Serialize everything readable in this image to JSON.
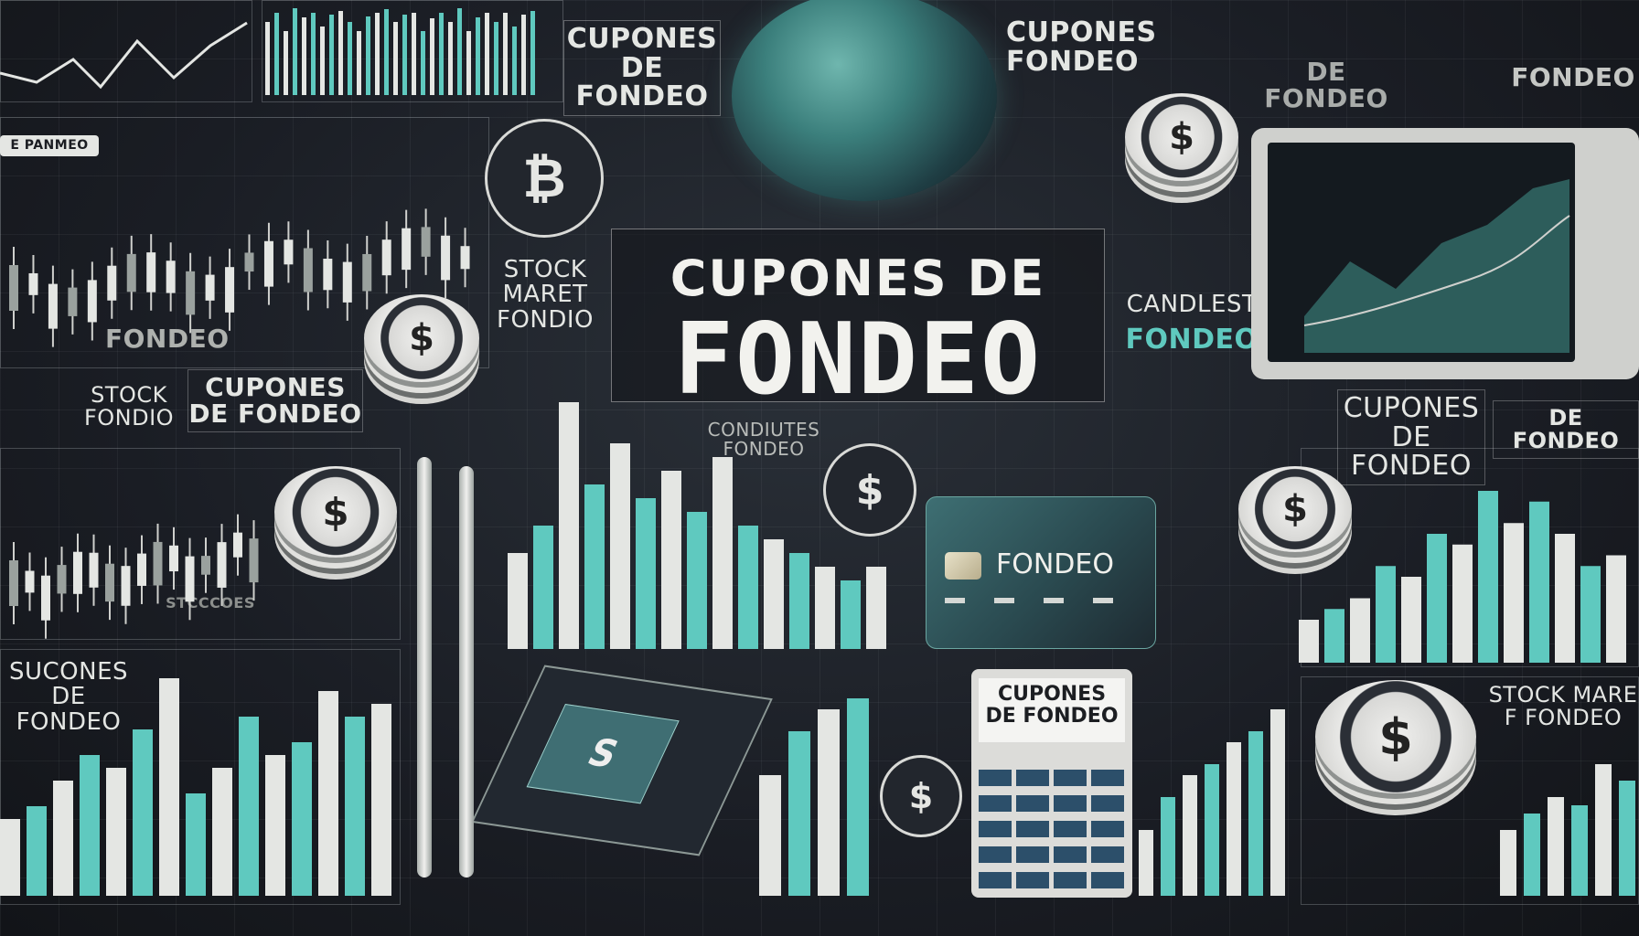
{
  "hero": {
    "line1": "CUPONES DE",
    "line2": "FONDEO"
  },
  "labels": {
    "top_left_cupones": "CUPONES\nDE FONDEO",
    "top_mid_cupones": "CUPONES\nFONDEO",
    "top_right_de_fondeo": "DE FONDEO",
    "top_right_fondeo": "FONDEO",
    "left_panmeo": "E PANMEO",
    "left_fondeo": "FONDEO",
    "stock_maret_fondio": "STOCK\nMARET\nFONDIO",
    "stock_fondio": "STOCK\nFONDIO",
    "cupones_de_fondeo_left": "CUPONES\nDE FONDEO",
    "condiutes_fondeo": "CONDIUTES\nFONDEO",
    "candlest": "CANDLEST",
    "candlest_fondeo": "FONDEO",
    "cupones_de_fondeo_right": "CUPONES\nDE\nFONDEO",
    "de_fondeo_right": "DE FONDEO",
    "sucones_de_fondeo": "SUCONES\nDE FONDEO",
    "stock_mare_fondeo": "STOCK MARE\nF FONDEO",
    "sicoones": "STCCCOES"
  },
  "card": {
    "title": "FONDEO"
  },
  "calculator": {
    "title": "CUPONES\nDE FONDEO"
  },
  "icons": {
    "bitcoin": "₿",
    "dollar": "$",
    "tablet": "S"
  },
  "colors": {
    "background": "#1a1d24",
    "teal": "#5fc9bf",
    "light": "#e4e6e3"
  }
}
